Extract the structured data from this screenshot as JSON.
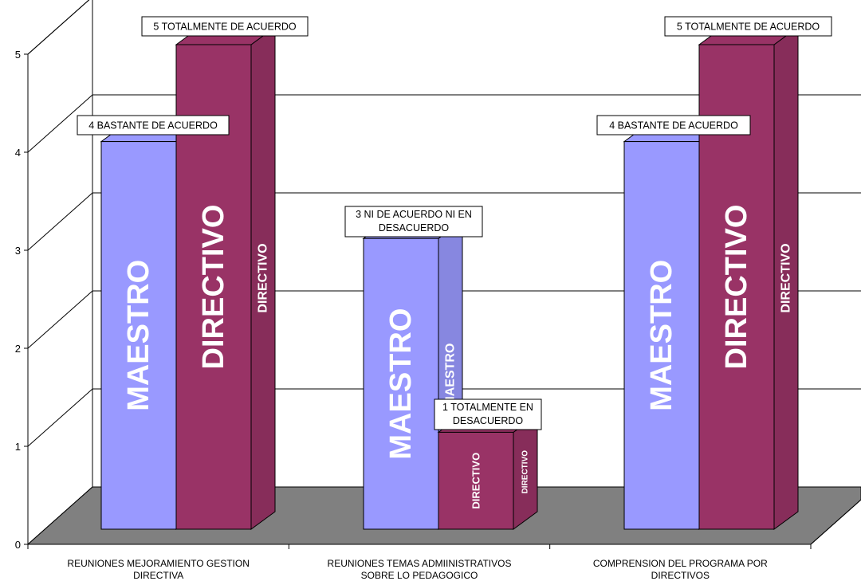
{
  "chart_data": {
    "type": "bar",
    "categories": [
      [
        "REUNIONES MEJORAMIENTO GESTION",
        "DIRECTIVA"
      ],
      [
        "REUNIONES TEMAS ADMIINISTRATIVOS",
        "SOBRE LO PEDAGOGICO"
      ],
      [
        "COMPRENSION DEL PROGRAMA POR",
        "DIRECTIVOS"
      ]
    ],
    "series": [
      {
        "name": "MAESTRO",
        "color": "#9999ff",
        "values": [
          4,
          3,
          4
        ],
        "labels": [
          [
            "4 BASTANTE DE ACUERDO"
          ],
          [
            "3 NI DE ACUERDO NI EN",
            "DESACUERDO"
          ],
          [
            "4 BASTANTE DE ACUERDO"
          ]
        ]
      },
      {
        "name": "DIRECTIVO",
        "color": "#993366",
        "values": [
          5,
          1,
          5
        ],
        "labels": [
          [
            "5 TOTALMENTE DE ACUERDO"
          ],
          [
            "1 TOTALMENTE EN",
            "DESACUERDO"
          ],
          [
            "5 TOTALMENTE DE ACUERDO"
          ]
        ]
      }
    ],
    "ylim": [
      0,
      5
    ],
    "yticks": [
      "0",
      "1",
      "2",
      "3",
      "4",
      "5"
    ],
    "grid": true,
    "three_d": true,
    "floor_color": "#808080"
  }
}
